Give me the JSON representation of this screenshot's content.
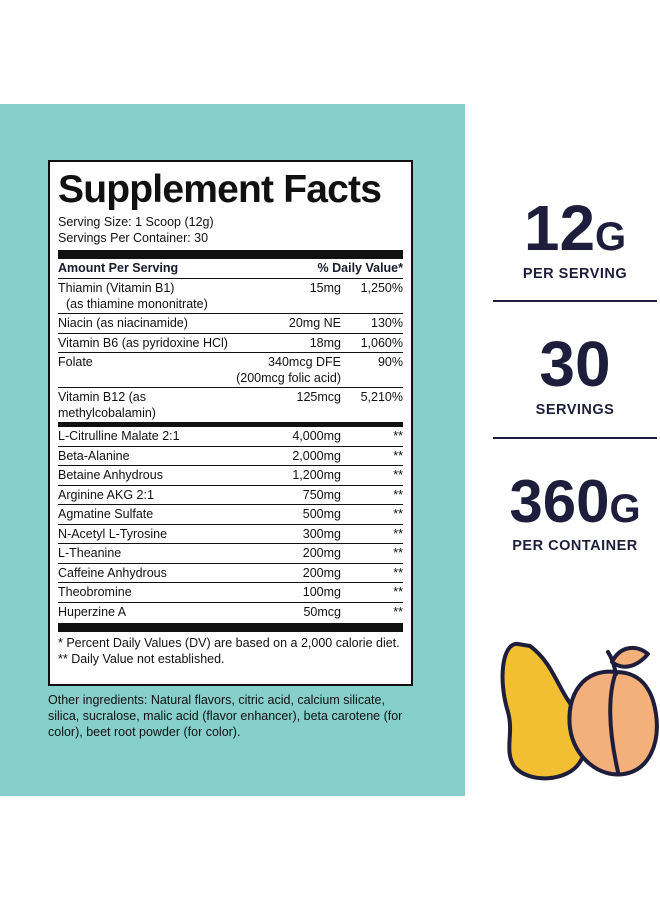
{
  "facts": {
    "title": "Supplement Facts",
    "serving_size": "Serving Size: 1 Scoop (12g)",
    "servings_per_container": "Servings Per Container: 30",
    "header_left": "Amount Per Serving",
    "header_right": "% Daily Value*",
    "vitamins": [
      {
        "name": "Thiamin (Vitamin B1)",
        "sub": "(as thiamine mononitrate)",
        "amount": "15mg",
        "dv": "1,250%"
      },
      {
        "name": "Niacin (as niacinamide)",
        "amount": "20mg NE",
        "dv": "130%"
      },
      {
        "name": "Vitamin B6 (as pyridoxine HCl)",
        "amount": "18mg",
        "dv": "1,060%"
      },
      {
        "name": "Folate",
        "amount": "340mcg DFE",
        "amount_sub": "(200mcg folic acid)",
        "dv": "90%"
      },
      {
        "name": "Vitamin B12 (as methylcobalamin)",
        "amount": "125mcg",
        "dv": "5,210%"
      }
    ],
    "ingredients": [
      {
        "name": "L-Citrulline Malate 2:1",
        "amount": "4,000mg",
        "dv": "**"
      },
      {
        "name": "Beta-Alanine",
        "amount": "2,000mg",
        "dv": "**"
      },
      {
        "name": "Betaine Anhydrous",
        "amount": "1,200mg",
        "dv": "**"
      },
      {
        "name": "Arginine AKG 2:1",
        "amount": "750mg",
        "dv": "**"
      },
      {
        "name": "Agmatine Sulfate",
        "amount": "500mg",
        "dv": "**"
      },
      {
        "name": "N-Acetyl L-Tyrosine",
        "amount": "300mg",
        "dv": "**"
      },
      {
        "name": "L-Theanine",
        "amount": "200mg",
        "dv": "**"
      },
      {
        "name": "Caffeine Anhydrous",
        "amount": "200mg",
        "dv": "**"
      },
      {
        "name": "Theobromine",
        "amount": "100mg",
        "dv": "**"
      },
      {
        "name": "Huperzine A",
        "amount": "50mcg",
        "dv": "**"
      }
    ],
    "footnote1": "* Percent Daily Values (DV) are based on a 2,000 calorie diet.",
    "footnote2": "** Daily Value not established."
  },
  "other_ingredients": "Other ingredients: Natural flavors, citric acid, calcium silicate, silica, sucralose, malic acid (flavor enhancer), beta carotene (for color), beet root powder (for color).",
  "stats": [
    {
      "number": "12",
      "unit": "G",
      "label": "PER SERVING"
    },
    {
      "number": "30",
      "unit": "",
      "label": "SERVINGS"
    },
    {
      "number": "360",
      "unit": "G",
      "label": "PER CONTAINER"
    }
  ],
  "illustration": {
    "icons": [
      "pear-icon",
      "peach-icon"
    ]
  },
  "colors": {
    "teal": "#86cfcb",
    "navy": "#1e1e3c",
    "pear": "#f2bf33",
    "peach": "#f3b07a"
  }
}
